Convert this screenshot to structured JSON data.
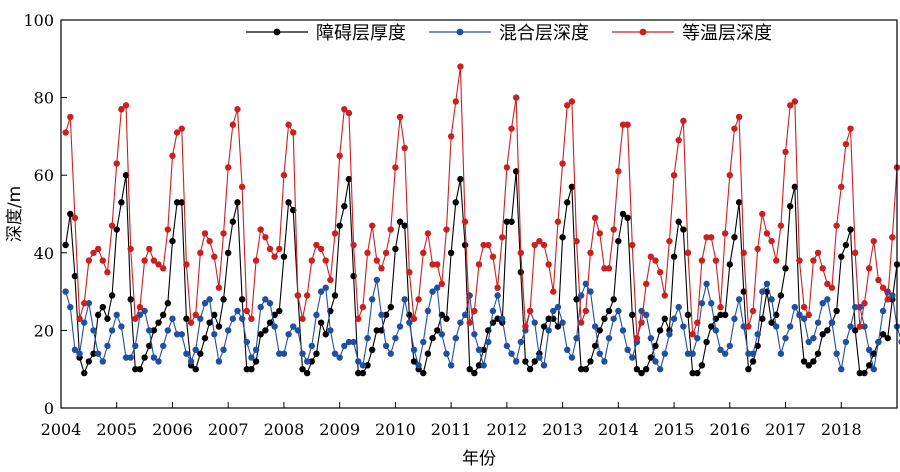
{
  "chart_data": {
    "type": "line",
    "xlabel": "年份",
    "ylabel": "深度/m",
    "xlim": [
      2004,
      2019
    ],
    "ylim": [
      0,
      100
    ],
    "x_ticks": [
      2004,
      2005,
      2006,
      2007,
      2008,
      2009,
      2010,
      2011,
      2012,
      2013,
      2014,
      2015,
      2016,
      2017,
      2018
    ],
    "y_ticks": [
      0,
      20,
      40,
      60,
      80,
      100
    ],
    "legend_position": "top-right",
    "grid": false,
    "series": [
      {
        "name": "障碍层厚度",
        "color": "#000000",
        "values": [
          [
            42,
            50,
            34,
            13,
            9,
            12,
            14,
            24,
            26,
            23,
            29,
            46,
            53,
            60,
            28,
            10,
            10,
            13,
            16,
            20,
            22,
            24,
            27,
            43,
            53,
            53,
            23,
            11,
            10,
            14,
            18,
            22,
            24,
            21,
            28,
            40,
            48,
            53,
            28,
            10,
            10,
            12,
            19,
            20,
            22,
            24,
            25,
            39,
            53,
            51,
            29,
            10,
            9,
            12,
            14,
            22,
            19,
            25,
            29,
            47,
            52,
            59,
            34,
            9,
            9,
            11,
            15,
            20,
            20,
            24,
            26,
            41,
            48,
            47,
            24,
            12,
            10,
            9,
            14,
            18,
            20,
            24,
            23,
            40,
            53,
            59,
            42,
            10,
            9,
            11,
            15,
            20,
            22,
            23,
            22,
            48,
            48,
            61,
            35,
            12,
            10,
            12,
            14,
            21,
            23,
            23,
            21,
            44,
            53,
            57,
            28,
            10,
            10,
            12,
            16,
            20,
            23,
            25,
            28,
            43,
            50,
            49,
            24,
            10,
            9,
            10,
            13,
            16,
            20,
            23,
            20,
            39,
            48,
            46,
            24,
            9,
            9,
            11,
            17,
            21,
            23,
            24,
            24,
            37,
            44,
            53,
            30,
            10,
            12,
            16,
            23,
            30,
            22,
            24,
            29,
            36,
            52,
            57,
            24,
            12,
            11,
            12,
            14,
            19,
            20,
            22,
            25,
            39,
            42,
            46,
            20,
            9,
            9,
            11,
            14,
            17,
            19,
            18,
            28,
            37
          ]
        ]
      },
      {
        "name": "混合层深度",
        "color": "#1f4fa0",
        "values": [
          [
            30,
            26,
            15,
            14,
            22,
            27,
            20,
            14,
            12,
            16,
            20,
            24,
            21,
            13,
            13,
            16,
            24,
            25,
            20,
            13,
            12,
            16,
            20,
            23,
            19,
            19,
            14,
            12,
            15,
            23,
            27,
            28,
            19,
            12,
            15,
            20,
            23,
            25,
            23,
            17,
            13,
            15,
            26,
            28,
            27,
            21,
            14,
            14,
            19,
            21,
            20,
            14,
            12,
            16,
            24,
            30,
            31,
            20,
            14,
            13,
            16,
            17,
            17,
            12,
            11,
            18,
            28,
            33,
            24,
            16,
            14,
            18,
            21,
            28,
            22,
            15,
            11,
            17,
            25,
            30,
            31,
            19,
            14,
            11,
            18,
            22,
            24,
            29,
            19,
            15,
            11,
            17,
            25,
            29,
            23,
            16,
            14,
            12,
            17,
            20,
            25,
            22,
            13,
            11,
            20,
            25,
            26,
            22,
            15,
            13,
            18,
            29,
            32,
            30,
            21,
            14,
            12,
            18,
            23,
            25,
            20,
            15,
            13,
            17,
            25,
            24,
            18,
            12,
            10,
            14,
            19,
            23,
            26,
            21,
            14,
            14,
            18,
            27,
            32,
            27,
            20,
            15,
            14,
            16,
            23,
            28,
            21,
            14,
            14,
            19,
            30,
            32,
            28,
            21,
            14,
            18,
            21,
            26,
            24,
            23,
            17,
            18,
            22,
            27,
            28,
            22,
            14,
            10,
            17,
            21,
            26,
            26,
            21,
            15,
            10,
            17,
            25,
            30,
            29,
            21,
            17,
            24
          ]
        ]
      },
      {
        "name": "等温层深度",
        "color": "#cc1f1f",
        "values": [
          [
            71,
            75,
            49,
            23,
            27,
            38,
            40,
            41,
            38,
            35,
            47,
            63,
            77,
            78,
            41,
            23,
            26,
            38,
            41,
            38,
            37,
            36,
            46,
            65,
            71,
            72,
            37,
            22,
            24,
            40,
            45,
            43,
            39,
            31,
            45,
            62,
            73,
            77,
            57,
            25,
            23,
            38,
            46,
            44,
            41,
            39,
            41,
            60,
            73,
            71,
            29,
            23,
            29,
            38,
            42,
            41,
            38,
            33,
            45,
            65,
            77,
            76,
            42,
            23,
            26,
            40,
            47,
            38,
            36,
            40,
            46,
            62,
            75,
            67,
            35,
            23,
            28,
            40,
            45,
            37,
            37,
            32,
            46,
            70,
            79,
            88,
            48,
            22,
            25,
            37,
            42,
            42,
            39,
            31,
            44,
            62,
            72,
            80,
            40,
            21,
            25,
            42,
            43,
            42,
            37,
            30,
            48,
            63,
            78,
            79,
            43,
            22,
            25,
            40,
            49,
            45,
            36,
            36,
            46,
            61,
            73,
            73,
            42,
            18,
            22,
            32,
            39,
            38,
            35,
            29,
            43,
            60,
            69,
            74,
            40,
            19,
            22,
            38,
            44,
            44,
            38,
            26,
            45,
            60,
            72,
            75,
            40,
            21,
            25,
            41,
            50,
            45,
            43,
            38,
            47,
            66,
            78,
            79,
            38,
            26,
            24,
            38,
            40,
            36,
            32,
            31,
            47,
            57,
            68,
            72,
            40,
            21,
            27,
            36,
            43,
            33,
            31,
            28,
            44,
            62
          ]
        ]
      }
    ]
  }
}
